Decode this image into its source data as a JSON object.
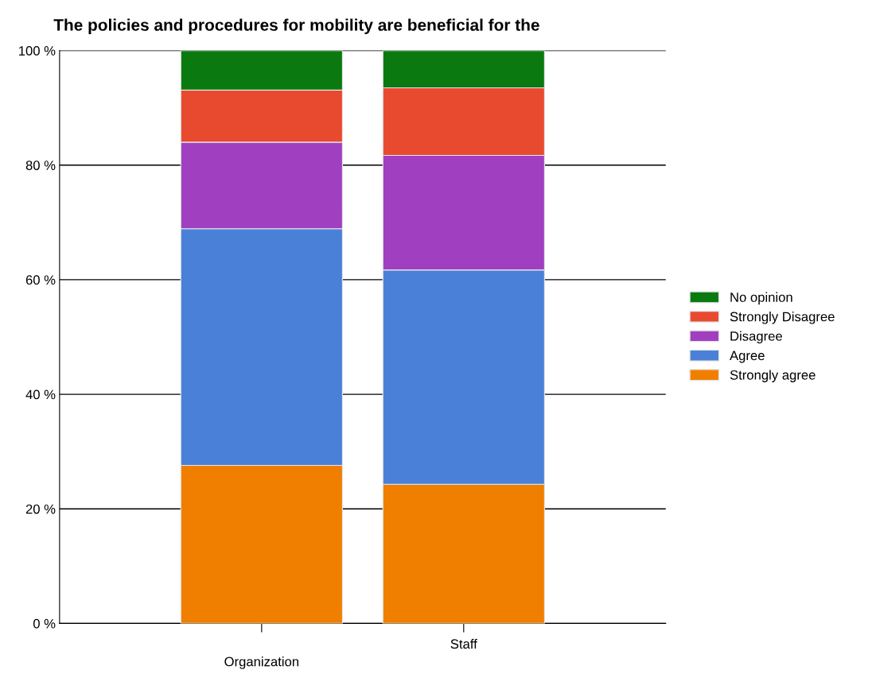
{
  "chart_data": {
    "type": "bar",
    "stacked": true,
    "title": "The policies and procedures for mobility are beneficial for the",
    "categories": [
      "Organization",
      "Staff"
    ],
    "series": [
      {
        "name": "Strongly agree",
        "color": "#f07f00",
        "values": [
          27.6,
          24.3
        ]
      },
      {
        "name": "Agree",
        "color": "#4a80d8",
        "values": [
          41.3,
          37.4
        ]
      },
      {
        "name": "Disagree",
        "color": "#a040c0",
        "values": [
          15.1,
          20.0
        ]
      },
      {
        "name": "Strongly Disagree",
        "color": "#e84a30",
        "values": [
          9.1,
          11.8
        ]
      },
      {
        "name": "No opinion",
        "color": "#0a7a10",
        "values": [
          6.9,
          6.5
        ]
      }
    ],
    "ylim": [
      0,
      100
    ],
    "yticks": [
      {
        "value": 0,
        "label": "0 %"
      },
      {
        "value": 20,
        "label": "20 %"
      },
      {
        "value": 40,
        "label": "40 %"
      },
      {
        "value": 60,
        "label": "60 %"
      },
      {
        "value": 80,
        "label": "80 %"
      },
      {
        "value": 100,
        "label": "100 %"
      }
    ],
    "grid": "y",
    "legend": "right"
  }
}
